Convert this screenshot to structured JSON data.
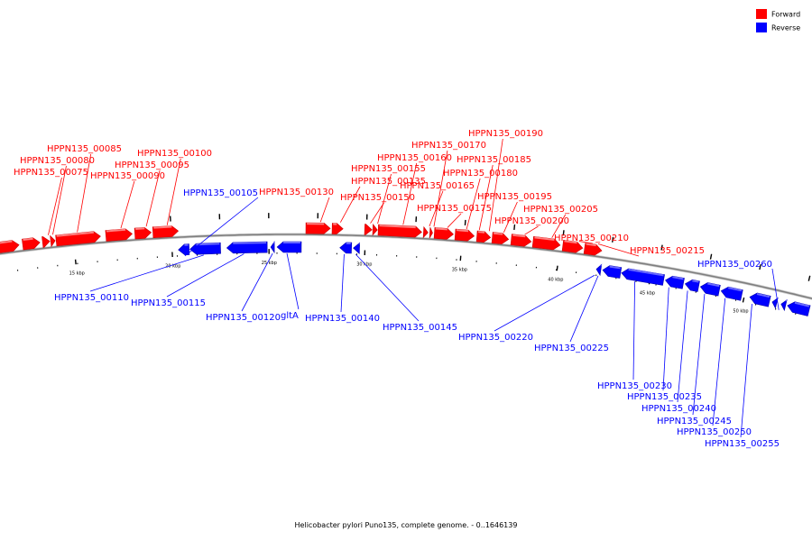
{
  "legend": [
    {
      "label": "Forward",
      "color": "#ff0000"
    },
    {
      "label": "Reverse",
      "color": "#0000ff"
    }
  ],
  "colors": {
    "forward": "#ff0000",
    "reverse": "#0000ff",
    "backbone": "#7f7f7f"
  },
  "ticks": [
    "15 kbp",
    "20 kbp",
    "25 kbp",
    "30 kbp",
    "35 kbp",
    "40 kbp",
    "45 kbp",
    "50 kbp"
  ],
  "genes": {
    "forward": [
      "HPPN135_00075",
      "HPPN135_00080",
      "HPPN135_00085",
      "HPPN135_00090",
      "HPPN135_00095",
      "HPPN135_00100",
      "HPPN135_00130",
      "HPPN135_00135",
      "HPPN135_00150",
      "HPPN135_00155",
      "HPPN135_00160",
      "HPPN135_00165",
      "HPPN135_00170",
      "HPPN135_00175",
      "HPPN135_00180",
      "HPPN135_00185",
      "HPPN135_00190",
      "HPPN135_00195",
      "HPPN135_00200",
      "HPPN135_00205",
      "HPPN135_00210",
      "HPPN135_00215"
    ],
    "reverse": [
      "HPPN135_00105",
      "HPPN135_00110",
      "HPPN135_00115",
      "HPPN135_00120",
      "gltA",
      "HPPN135_00140",
      "HPPN135_00145",
      "HPPN135_00220",
      "HPPN135_00225",
      "HPPN135_00230",
      "HPPN135_00235",
      "HPPN135_00240",
      "HPPN135_00245",
      "HPPN135_00250",
      "HPPN135_00255",
      "HPPN135_00260"
    ]
  },
  "caption": "Helicobacter pylori Puno135, complete genome. - 0..1646139"
}
